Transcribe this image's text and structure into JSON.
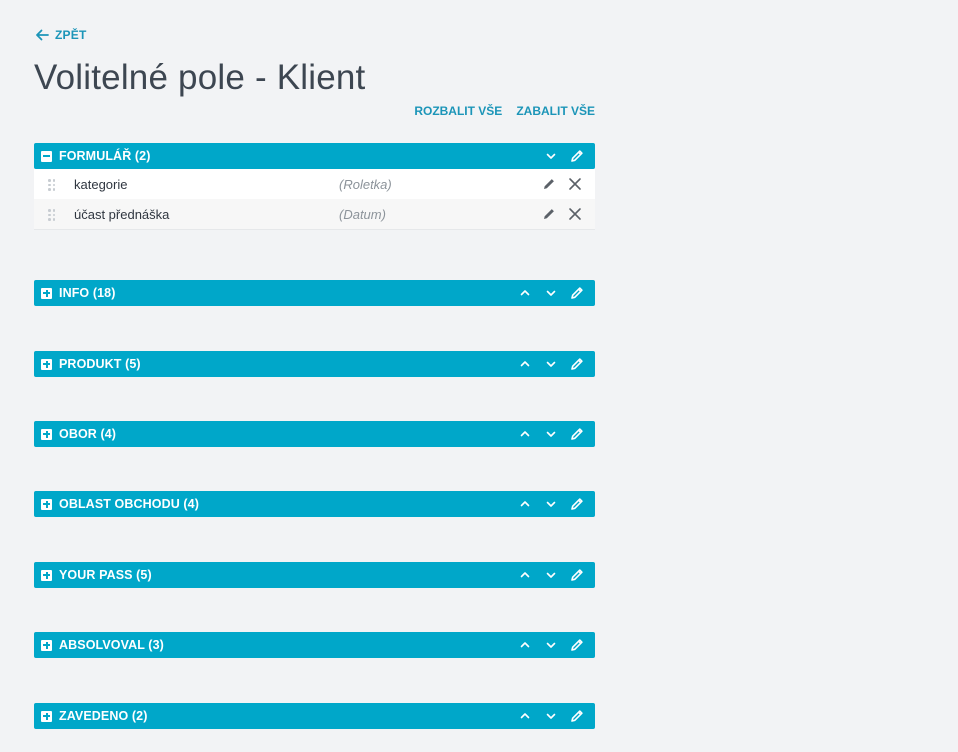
{
  "nav": {
    "back_label": "ZPĚT"
  },
  "page": {
    "title": "Volitelné pole - Klient"
  },
  "toolbar": {
    "expand_all": "ROZBALIT VŠE",
    "collapse_all": "ZABALIT VŠE"
  },
  "sections": [
    {
      "label": "FORMULÁŘ (2)",
      "expanded": true,
      "fields": [
        {
          "name": "kategorie",
          "type": "(Roletka)"
        },
        {
          "name": "účast přednáška",
          "type": "(Datum)"
        }
      ]
    },
    {
      "label": "INFO (18)",
      "expanded": false
    },
    {
      "label": "PRODUKT (5)",
      "expanded": false
    },
    {
      "label": "OBOR (4)",
      "expanded": false
    },
    {
      "label": "OBLAST OBCHODU (4)",
      "expanded": false
    },
    {
      "label": "YOUR PASS (5)",
      "expanded": false
    },
    {
      "label": "ABSOLVOVAL (3)",
      "expanded": false
    },
    {
      "label": "ZAVEDENO (2)",
      "expanded": false
    }
  ],
  "colors": {
    "accent": "#00a7c9",
    "link": "#1c95b8",
    "background": "#f2f3f5"
  },
  "icons": [
    "arrow-left-icon",
    "minus-box-icon",
    "plus-box-icon",
    "chevron-up-icon",
    "chevron-down-icon",
    "pencil-icon",
    "close-icon",
    "drag-handle-icon"
  ]
}
